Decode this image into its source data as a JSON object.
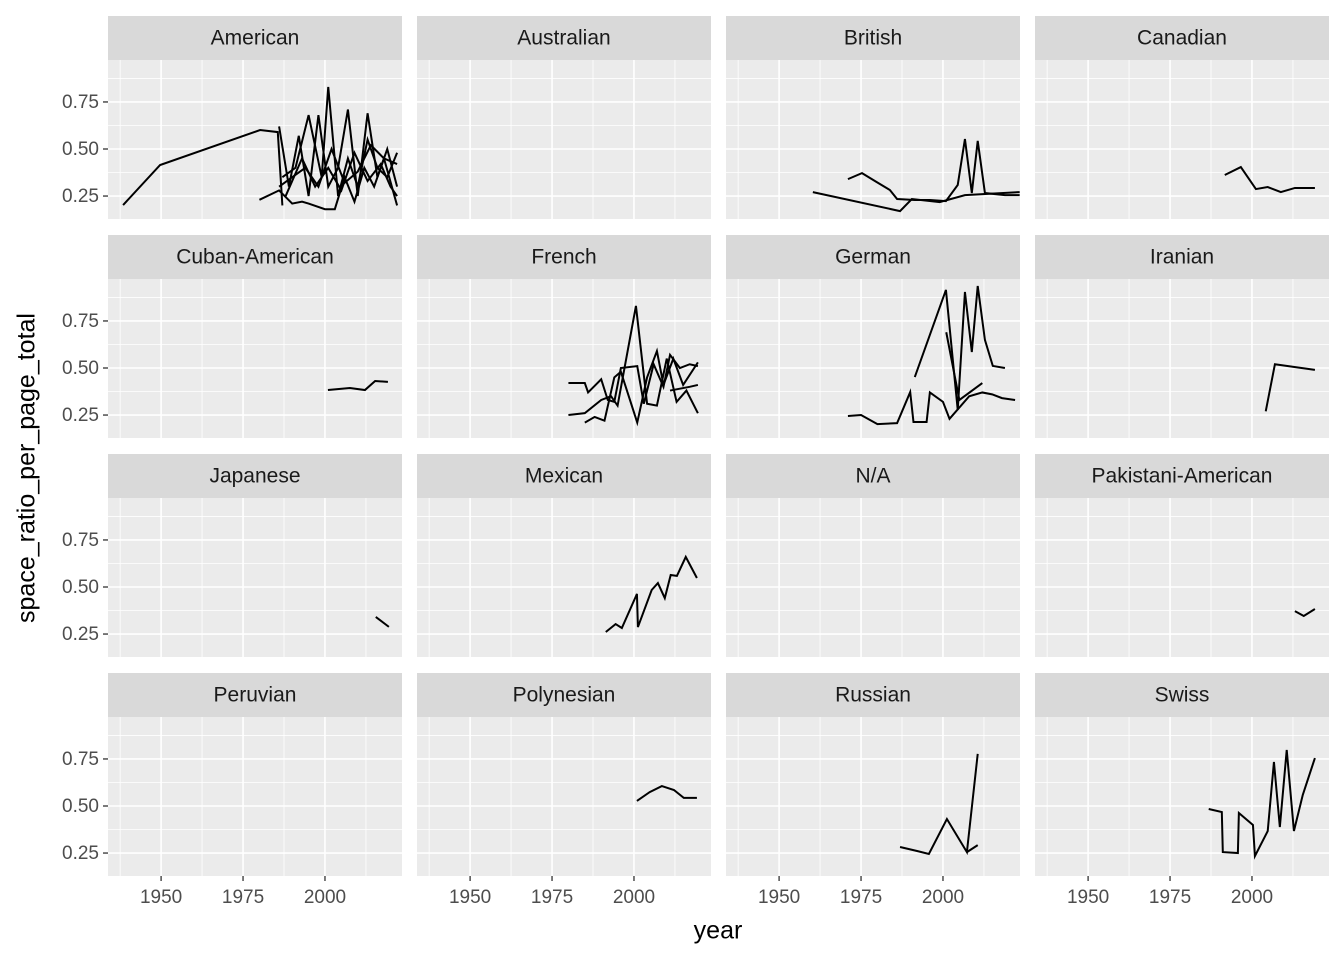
{
  "chart_data": {
    "type": "line",
    "xlabel": "year",
    "ylabel": "space_ratio_per_page_total",
    "color": "#000000",
    "xlim": [
      1933.8,
      2023.5
    ],
    "xticks": [
      1950,
      1975,
      2000
    ],
    "ylim": [
      0.128,
      0.973
    ],
    "yticks": [
      0.25,
      {
        "value": 0.5,
        "label": "0.50"
      },
      0.75
    ],
    "grid": true,
    "facets": [
      {
        "title": "American",
        "series": [
          {
            "x": [
              1938.4,
              1949.7,
              1980.2,
              1985.6,
              1987
            ],
            "values": [
              0.202,
              0.415,
              0.601,
              0.59,
              0.2
            ]
          },
          {
            "x": [
              1980,
              1986,
              1990,
              1993,
              1995,
              2000,
              2003,
              2006,
              2009,
              2012,
              2015,
              2018,
              2022
            ],
            "values": [
              0.23,
              0.28,
              0.21,
              0.22,
              0.21,
              0.18,
              0.18,
              0.35,
              0.22,
              0.4,
              0.3,
              0.45,
              0.2
            ]
          },
          {
            "x": [
              1986,
              1989,
              1992,
              1995,
              1998,
              2001,
              2004,
              2007,
              2010,
              2013,
              2016,
              2019,
              2022
            ],
            "values": [
              0.62,
              0.3,
              0.57,
              0.25,
              0.68,
              0.3,
              0.4,
              0.71,
              0.25,
              0.69,
              0.35,
              0.5,
              0.3
            ]
          },
          {
            "x": [
              1987,
              1991,
              1995,
              1999,
              2001,
              2004,
              2007,
              2010,
              2013,
              2016,
              2019,
              2022
            ],
            "values": [
              0.35,
              0.4,
              0.68,
              0.35,
              0.83,
              0.25,
              0.45,
              0.3,
              0.55,
              0.4,
              0.35,
              0.48
            ]
          },
          {
            "x": [
              1986,
              1990,
              1994,
              1998,
              2002,
              2006,
              2010,
              2014,
              2018,
              2022
            ],
            "values": [
              0.3,
              0.35,
              0.4,
              0.3,
              0.5,
              0.32,
              0.38,
              0.52,
              0.45,
              0.42
            ]
          },
          {
            "x": [
              1988,
              1993,
              1997,
              2001,
              2005,
              2009,
              2013,
              2017,
              2020,
              2022
            ],
            "values": [
              0.25,
              0.45,
              0.3,
              0.4,
              0.28,
              0.48,
              0.33,
              0.42,
              0.3,
              0.25
            ]
          }
        ]
      },
      {
        "title": "Australian",
        "series": []
      },
      {
        "title": "British",
        "series": [
          {
            "x": [
              1960.3,
              1986.9,
              1990.5,
              1999,
              2006.7,
              2023.4
            ],
            "values": [
              0.271,
              0.17,
              0.234,
              0.218,
              0.255,
              0.271
            ]
          },
          {
            "x": [
              1971,
              1975.3,
              1979.8,
              1983.8,
              1986,
              1991.4,
              1996,
              2000.9,
              2004.5,
              2006.7,
              2008.8,
              2010.6,
              2012.8,
              2018.9,
              2023.4
            ],
            "values": [
              0.34,
              0.372,
              0.324,
              0.282,
              0.234,
              0.229,
              0.229,
              0.223,
              0.309,
              0.553,
              0.266,
              0.543,
              0.266,
              0.255,
              0.255
            ]
          }
        ]
      },
      {
        "title": "Canadian",
        "series": [
          {
            "x": [
              1991.7,
              1996.6,
              2001.2,
              2004.8,
              2008.8,
              2013.1,
              2019.2
            ],
            "values": [
              0.362,
              0.404,
              0.287,
              0.298,
              0.271,
              0.293,
              0.293
            ]
          }
        ]
      },
      {
        "title": "Cuban-American",
        "series": [
          {
            "x": [
              2000.9,
              2007.6,
              2012.2,
              2015.3,
              2019.2
            ],
            "values": [
              0.383,
              0.394,
              0.383,
              0.431,
              0.426
            ]
          }
        ]
      },
      {
        "title": "French",
        "series": [
          {
            "x": [
              1980,
              1985,
              1986,
              1990,
              1992,
              1994,
              1996,
              2001,
              2003,
              2006,
              2009,
              2011,
              2014,
              2017,
              2019.5
            ],
            "values": [
              0.42,
              0.42,
              0.37,
              0.44,
              0.33,
              0.32,
              0.5,
              0.51,
              0.31,
              0.52,
              0.4,
              0.57,
              0.5,
              0.52,
              0.51
            ]
          },
          {
            "x": [
              1980,
              1985,
              1990,
              1993,
              1995,
              2000.6,
              2004,
              2007,
              2010,
              2013,
              2016,
              2019.5
            ],
            "values": [
              0.25,
              0.26,
              0.33,
              0.35,
              0.3,
              0.83,
              0.31,
              0.3,
              0.55,
              0.32,
              0.38,
              0.26
            ]
          },
          {
            "x": [
              1985,
              1988,
              1991,
              1994,
              1996,
              2001,
              2004,
              2007,
              2009,
              2012,
              2015,
              2019.5
            ],
            "values": [
              0.21,
              0.24,
              0.22,
              0.45,
              0.48,
              0.21,
              0.45,
              0.59,
              0.41,
              0.55,
              0.41,
              0.53
            ]
          },
          {
            "x": [
              2011,
              2014,
              2017,
              2019.5
            ],
            "values": [
              0.38,
              0.39,
              0.4,
              0.41
            ]
          }
        ]
      },
      {
        "title": "German",
        "series": [
          {
            "x": [
              1991.4,
              2000.9,
              2004.5,
              2006.7,
              2008.8,
              2010.6,
              2012.8,
              2015.2,
              2018.9
            ],
            "values": [
              0.452,
              0.915,
              0.277,
              0.904,
              0.585,
              0.936,
              0.649,
              0.511,
              0.5
            ]
          },
          {
            "x": [
              1971,
              1975,
              1980,
              1986,
              1990,
              1991,
              1995,
              1996,
              2000,
              2002,
              2008,
              2012,
              2015,
              2018,
              2022
            ],
            "values": [
              0.245,
              0.25,
              0.202,
              0.207,
              0.372,
              0.213,
              0.213,
              0.37,
              0.32,
              0.23,
              0.35,
              0.37,
              0.36,
              0.34,
              0.33
            ]
          },
          {
            "x": [
              2001,
              2005,
              2012
            ],
            "values": [
              0.69,
              0.33,
              0.42
            ]
          }
        ]
      },
      {
        "title": "Iranian",
        "series": [
          {
            "x": [
              2004.2,
              2007,
              2019.2
            ],
            "values": [
              0.27,
              0.52,
              0.49
            ]
          }
        ]
      },
      {
        "title": "Japanese",
        "series": [
          {
            "x": [
              2015.5,
              2019.5
            ],
            "values": [
              0.341,
              0.288
            ]
          }
        ]
      },
      {
        "title": "Mexican",
        "series": [
          {
            "x": [
              1991.4,
              1994.4,
              1996.3,
              2000.9,
              2001.2,
              2005.4,
              2007.3,
              2009.4,
              2011.2,
              2013.1,
              2015.8,
              2019.2
            ],
            "values": [
              0.261,
              0.303,
              0.282,
              0.463,
              0.287,
              0.484,
              0.521,
              0.441,
              0.564,
              0.559,
              0.66,
              0.548
            ]
          }
        ]
      },
      {
        "title": "N/A",
        "series": []
      },
      {
        "title": "Pakistani-American",
        "series": [
          {
            "x": [
              2013.1,
              2015.8,
              2019.2
            ],
            "values": [
              0.372,
              0.346,
              0.383
            ]
          }
        ]
      },
      {
        "title": "Peruvian",
        "series": []
      },
      {
        "title": "Polynesian",
        "series": [
          {
            "x": [
              2000.9,
              2004.8,
              2008.5,
              2012.2,
              2015.2,
              2019.2
            ],
            "values": [
              0.527,
              0.574,
              0.606,
              0.585,
              0.543,
              0.543
            ]
          }
        ]
      },
      {
        "title": "Russian",
        "series": [
          {
            "x": [
              1986.9,
              1992.1,
              1995.7,
              2001.2,
              2007.3,
              2010.6
            ],
            "values": [
              0.282,
              0.261,
              0.245,
              0.431,
              0.255,
              0.777
            ]
          },
          {
            "x": [
              2007.3,
              2010.6
            ],
            "values": [
              0.255,
              0.292
            ]
          }
        ]
      },
      {
        "title": "Swiss",
        "series": [
          {
            "x": [
              1986.8,
              1990.8,
              1991.1,
              1995.7,
              1996,
              2000.3,
              2000.9,
              2004.8,
              2006.7,
              2008.5,
              2010.6,
              2012.8,
              2015.5,
              2019.2
            ],
            "values": [
              0.484,
              0.468,
              0.255,
              0.25,
              0.463,
              0.399,
              0.234,
              0.367,
              0.734,
              0.388,
              0.798,
              0.367,
              0.559,
              0.755
            ]
          }
        ]
      }
    ]
  }
}
